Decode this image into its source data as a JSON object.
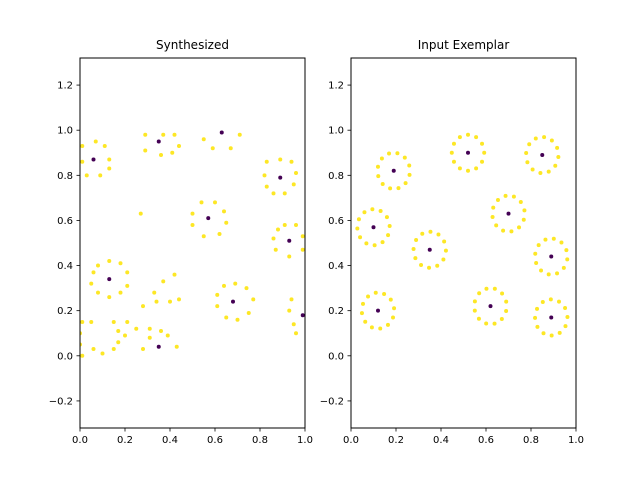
{
  "colors": {
    "ring_point": "#fde725",
    "center_point": "#440154",
    "axes": "#000000",
    "background": "#ffffff"
  },
  "chart_data": [
    {
      "type": "scatter",
      "title": "Synthesized",
      "xlim": [
        0.0,
        1.0
      ],
      "ylim": [
        -0.32,
        1.32
      ],
      "xticks": [
        "0.0",
        "0.2",
        "0.4",
        "0.6",
        "0.8",
        "1.0"
      ],
      "xtick_values": [
        0.0,
        0.2,
        0.4,
        0.6,
        0.8,
        1.0
      ],
      "yticks": [
        "−0.2",
        "0.0",
        "0.2",
        "0.4",
        "0.6",
        "0.8",
        "1.0",
        "1.2"
      ],
      "ytick_values": [
        -0.2,
        0.0,
        0.2,
        0.4,
        0.6,
        0.8,
        1.0,
        1.2
      ],
      "grid": false,
      "centers": [
        {
          "x": 0.06,
          "y": 0.87
        },
        {
          "x": 0.35,
          "y": 0.95
        },
        {
          "x": 0.63,
          "y": 0.99
        },
        {
          "x": 0.89,
          "y": 0.79
        },
        {
          "x": 0.57,
          "y": 0.61
        },
        {
          "x": 0.93,
          "y": 0.51
        },
        {
          "x": 0.13,
          "y": 0.34
        },
        {
          "x": 0.68,
          "y": 0.24
        },
        {
          "x": 0.35,
          "y": 0.04
        },
        {
          "x": 0.99,
          "y": 0.18
        }
      ],
      "points": [
        {
          "x": 0.06,
          "y": 0.87
        },
        {
          "x": 0.35,
          "y": 0.95
        },
        {
          "x": 0.63,
          "y": 0.99
        },
        {
          "x": 0.89,
          "y": 0.79
        },
        {
          "x": 0.57,
          "y": 0.61
        },
        {
          "x": 0.93,
          "y": 0.51
        },
        {
          "x": 0.13,
          "y": 0.34
        },
        {
          "x": 0.68,
          "y": 0.24
        },
        {
          "x": 0.35,
          "y": 0.04
        },
        {
          "x": 0.99,
          "y": 0.18
        },
        {
          "x": 0.01,
          "y": 0.93
        },
        {
          "x": 0.07,
          "y": 0.95
        },
        {
          "x": 0.11,
          "y": 0.93
        },
        {
          "x": 0.13,
          "y": 0.87
        },
        {
          "x": 0.13,
          "y": 0.83
        },
        {
          "x": 0.09,
          "y": 0.8
        },
        {
          "x": 0.03,
          "y": 0.8
        },
        {
          "x": 0.01,
          "y": 0.86
        },
        {
          "x": 0.29,
          "y": 0.98
        },
        {
          "x": 0.37,
          "y": 0.98
        },
        {
          "x": 0.42,
          "y": 0.98
        },
        {
          "x": 0.44,
          "y": 0.93
        },
        {
          "x": 0.41,
          "y": 0.9
        },
        {
          "x": 0.36,
          "y": 0.89
        },
        {
          "x": 0.29,
          "y": 0.91
        },
        {
          "x": 0.55,
          "y": 0.96
        },
        {
          "x": 0.59,
          "y": 0.92
        },
        {
          "x": 0.67,
          "y": 0.92
        },
        {
          "x": 0.71,
          "y": 0.98
        },
        {
          "x": 0.83,
          "y": 0.86
        },
        {
          "x": 0.89,
          "y": 0.87
        },
        {
          "x": 0.94,
          "y": 0.86
        },
        {
          "x": 0.96,
          "y": 0.81
        },
        {
          "x": 0.95,
          "y": 0.76
        },
        {
          "x": 0.91,
          "y": 0.72
        },
        {
          "x": 0.86,
          "y": 0.72
        },
        {
          "x": 0.83,
          "y": 0.75
        },
        {
          "x": 0.82,
          "y": 0.8
        },
        {
          "x": 0.27,
          "y": 0.63
        },
        {
          "x": 0.54,
          "y": 0.68
        },
        {
          "x": 0.6,
          "y": 0.68
        },
        {
          "x": 0.64,
          "y": 0.64
        },
        {
          "x": 0.65,
          "y": 0.59
        },
        {
          "x": 0.62,
          "y": 0.54
        },
        {
          "x": 0.55,
          "y": 0.53
        },
        {
          "x": 0.5,
          "y": 0.58
        },
        {
          "x": 0.5,
          "y": 0.63
        },
        {
          "x": 0.91,
          "y": 0.58
        },
        {
          "x": 0.96,
          "y": 0.58
        },
        {
          "x": 0.99,
          "y": 0.53
        },
        {
          "x": 0.99,
          "y": 0.47
        },
        {
          "x": 0.93,
          "y": 0.44
        },
        {
          "x": 0.87,
          "y": 0.47
        },
        {
          "x": 0.86,
          "y": 0.52
        },
        {
          "x": 0.88,
          "y": 0.56
        },
        {
          "x": 0.08,
          "y": 0.4
        },
        {
          "x": 0.13,
          "y": 0.42
        },
        {
          "x": 0.18,
          "y": 0.41
        },
        {
          "x": 0.21,
          "y": 0.37
        },
        {
          "x": 0.21,
          "y": 0.31
        },
        {
          "x": 0.18,
          "y": 0.28
        },
        {
          "x": 0.13,
          "y": 0.26
        },
        {
          "x": 0.08,
          "y": 0.28
        },
        {
          "x": 0.05,
          "y": 0.32
        },
        {
          "x": 0.06,
          "y": 0.37
        },
        {
          "x": 0.37,
          "y": 0.33
        },
        {
          "x": 0.42,
          "y": 0.36
        },
        {
          "x": 0.33,
          "y": 0.28
        },
        {
          "x": 0.28,
          "y": 0.22
        },
        {
          "x": 0.34,
          "y": 0.24
        },
        {
          "x": 0.4,
          "y": 0.24
        },
        {
          "x": 0.44,
          "y": 0.25
        },
        {
          "x": 0.64,
          "y": 0.31
        },
        {
          "x": 0.69,
          "y": 0.32
        },
        {
          "x": 0.74,
          "y": 0.3
        },
        {
          "x": 0.77,
          "y": 0.25
        },
        {
          "x": 0.75,
          "y": 0.19
        },
        {
          "x": 0.7,
          "y": 0.16
        },
        {
          "x": 0.65,
          "y": 0.17
        },
        {
          "x": 0.61,
          "y": 0.22
        },
        {
          "x": 0.61,
          "y": 0.27
        },
        {
          "x": 0.94,
          "y": 0.25
        },
        {
          "x": 0.93,
          "y": 0.2
        },
        {
          "x": 0.95,
          "y": 0.14
        },
        {
          "x": 0.96,
          "y": 0.1
        },
        {
          "x": 0.01,
          "y": 0.15
        },
        {
          "x": 0.05,
          "y": 0.15
        },
        {
          "x": 0.0,
          "y": 0.1
        },
        {
          "x": 0.0,
          "y": 0.05
        },
        {
          "x": 0.01,
          "y": 0.0
        },
        {
          "x": 0.06,
          "y": 0.03
        },
        {
          "x": 0.1,
          "y": 0.01
        },
        {
          "x": 0.15,
          "y": 0.03
        },
        {
          "x": 0.17,
          "y": 0.06
        },
        {
          "x": 0.17,
          "y": 0.11
        },
        {
          "x": 0.15,
          "y": 0.15
        },
        {
          "x": 0.21,
          "y": 0.15
        },
        {
          "x": 0.25,
          "y": 0.12
        },
        {
          "x": 0.2,
          "y": 0.09
        },
        {
          "x": 0.31,
          "y": 0.12
        },
        {
          "x": 0.36,
          "y": 0.11
        },
        {
          "x": 0.39,
          "y": 0.09
        },
        {
          "x": 0.43,
          "y": 0.04
        },
        {
          "x": 0.28,
          "y": 0.03
        },
        {
          "x": 0.31,
          "y": 0.08
        }
      ]
    },
    {
      "type": "scatter",
      "title": "Input Exemplar",
      "xlim": [
        0.0,
        1.0
      ],
      "ylim": [
        -0.32,
        1.32
      ],
      "xticks": [
        "0.0",
        "0.2",
        "0.4",
        "0.6",
        "0.8",
        "1.0"
      ],
      "xtick_values": [
        0.0,
        0.2,
        0.4,
        0.6,
        0.8,
        1.0
      ],
      "yticks": [
        "−0.2",
        "0.0",
        "0.2",
        "0.4",
        "0.6",
        "0.8",
        "1.0",
        "1.2"
      ],
      "ytick_values": [
        -0.2,
        0.0,
        0.2,
        0.4,
        0.6,
        0.8,
        1.0,
        1.2
      ],
      "grid": false,
      "centers": [
        {
          "x": 0.52,
          "y": 0.9
        },
        {
          "x": 0.85,
          "y": 0.89
        },
        {
          "x": 0.19,
          "y": 0.82
        },
        {
          "x": 0.7,
          "y": 0.63
        },
        {
          "x": 0.1,
          "y": 0.57
        },
        {
          "x": 0.35,
          "y": 0.47
        },
        {
          "x": 0.89,
          "y": 0.44
        },
        {
          "x": 0.62,
          "y": 0.22
        },
        {
          "x": 0.12,
          "y": 0.2
        },
        {
          "x": 0.89,
          "y": 0.17
        }
      ],
      "ring_radius": 0.08,
      "ring_count": 12
    }
  ]
}
